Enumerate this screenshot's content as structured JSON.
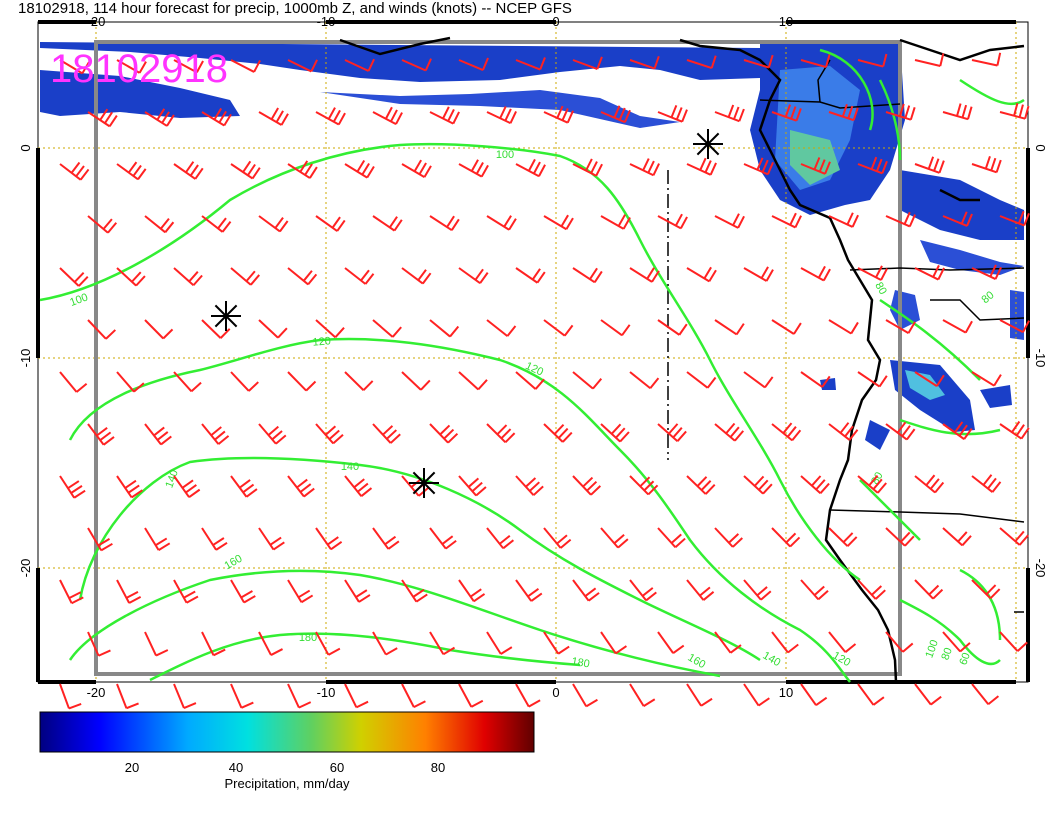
{
  "title": "18102918, 114 hour forecast for precip, 1000mb Z, and winds (knots) -- NCEP GFS",
  "date_stamp": "18102918",
  "longitude_ticks": [
    "-20",
    "-10",
    "0",
    "10"
  ],
  "latitude_ticks": [
    "0",
    "-10",
    "-20"
  ],
  "height_contours": {
    "color": "#33ee33",
    "labels": [
      "100",
      "100",
      "120",
      "120",
      "140",
      "140",
      "160",
      "180",
      "180",
      "160",
      "140",
      "120",
      "80",
      "80",
      "100",
      "80",
      "60",
      "80"
    ]
  },
  "wind_barbs": {
    "color": "#ff2222"
  },
  "pressure_centers": [
    "asterisk",
    "asterisk",
    "asterisk"
  ],
  "colorbar": {
    "tick_labels": [
      "20",
      "40",
      "60",
      "80"
    ],
    "label": "Precipitation, mm/day",
    "colors": [
      "#000080",
      "#0000ff",
      "#00aaff",
      "#00e0e0",
      "#60d060",
      "#d0d000",
      "#ff8000",
      "#e00000",
      "#600000"
    ]
  },
  "colors": {
    "coastline": "#000000",
    "grid": "#ccaa00",
    "frame": "#888888"
  }
}
